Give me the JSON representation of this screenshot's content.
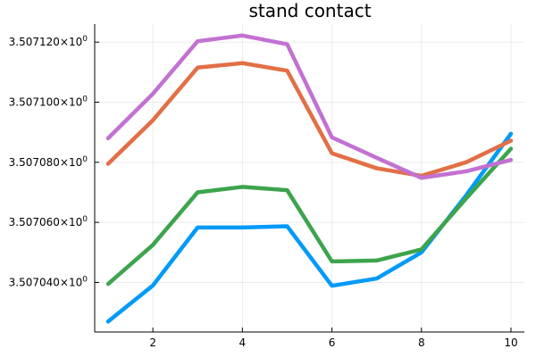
{
  "chart_data": {
    "type": "line",
    "title": "stand contact",
    "xlabel": "",
    "ylabel": "",
    "x": [
      1,
      2,
      3,
      4,
      5,
      6,
      7,
      8,
      9,
      10
    ],
    "xticks": [
      2,
      4,
      6,
      8,
      10
    ],
    "xlim": [
      0.7,
      10.3
    ],
    "ylim": [
      3.5070235,
      3.507126
    ],
    "yticks": [
      3.50704,
      3.50706,
      3.50708,
      3.5071,
      3.50712
    ],
    "ytick_labels": [
      "3.507040×10",
      "3.507060×10",
      "3.507080×10",
      "3.507100×10",
      "3.507120×10"
    ],
    "ytick_exponent": "0",
    "grid": true,
    "legend": "none",
    "series": [
      {
        "color": "#009af9",
        "values": [
          3.507027,
          3.507039,
          3.5070583,
          3.5070583,
          3.5070587,
          3.5070389,
          3.5070413,
          3.50705,
          3.507069,
          3.5070895
        ]
      },
      {
        "color": "#e26f46",
        "values": [
          3.5070795,
          3.507094,
          3.5071115,
          3.507113,
          3.5071105,
          3.507083,
          3.507078,
          3.5070755,
          3.50708,
          3.5070872
        ]
      },
      {
        "color": "#3da44d",
        "values": [
          3.5070395,
          3.5070525,
          3.50707,
          3.5070718,
          3.5070707,
          3.507047,
          3.5070473,
          3.507051,
          3.507068,
          3.5070845
        ]
      },
      {
        "color": "#c271d2",
        "values": [
          3.507088,
          3.5071028,
          3.5071203,
          3.5071222,
          3.5071193,
          3.5070883,
          3.5070815,
          3.5070748,
          3.507077,
          3.5070808
        ]
      }
    ]
  }
}
